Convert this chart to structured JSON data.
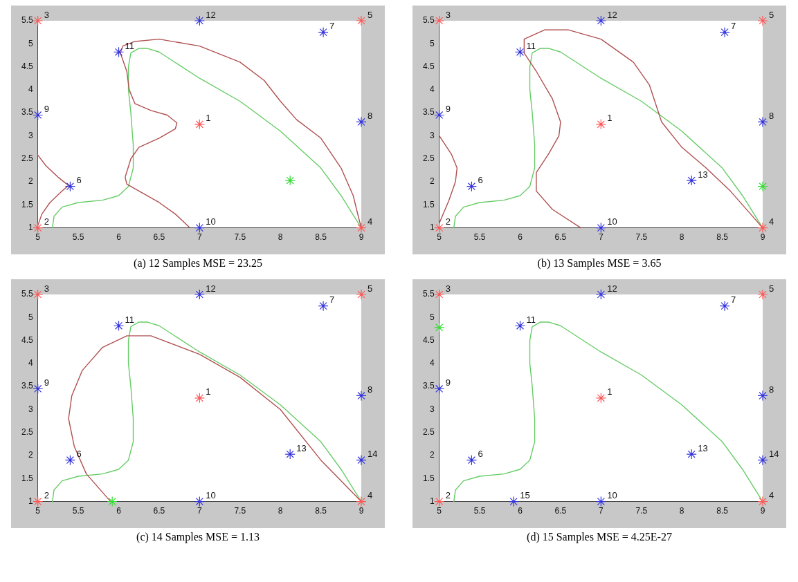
{
  "chart_data": [
    {
      "type": "scatter",
      "title": "(a) 12 Samples MSE = 23.25",
      "xlim": [
        5,
        9
      ],
      "ylim": [
        1,
        5.5
      ],
      "xticks": [
        5,
        5.5,
        6,
        6.5,
        7,
        7.5,
        8,
        8.5,
        9
      ],
      "yticks": [
        1,
        1.5,
        2,
        2.5,
        3,
        3.5,
        4,
        4.5,
        5,
        5.5
      ],
      "marker": "cross",
      "series": [
        {
          "color": "#ff5555",
          "x": [
            7,
            5,
            5,
            9,
            9
          ],
          "values": [
            3.25,
            1,
            5.5,
            1,
            5.5
          ]
        },
        {
          "color": "#3333dd",
          "x": [
            5.4,
            8.53,
            9,
            5,
            7,
            6,
            7
          ],
          "values": [
            1.9,
            5.25,
            3.3,
            3.45,
            1,
            4.82,
            5.5
          ]
        },
        {
          "color": "#33dd33",
          "x": [
            8.12
          ],
          "values": [
            2.03
          ]
        },
        {
          "type": "line",
          "marker": "none",
          "color": "#b05050",
          "x": [
            5,
            5.1,
            5.25,
            5.38,
            5.3,
            5.15,
            5.05,
            5,
            null,
            6.88,
            6.7,
            6.5,
            6.3,
            6.1,
            6.08,
            6.15,
            6.25,
            6.5,
            6.7,
            6.72,
            6.6,
            6.4,
            6.2,
            6.13,
            6.1,
            6.05,
            6.02,
            6.05,
            6.2,
            6.5,
            7,
            7.5,
            7.8,
            8,
            8.2,
            8.5,
            8.75,
            8.9,
            8.97,
            9
          ],
          "values": [
            2.58,
            2.35,
            2.1,
            1.92,
            1.8,
            1.55,
            1.3,
            1.05,
            null,
            1,
            1.3,
            1.55,
            1.75,
            1.95,
            2.1,
            2.5,
            2.75,
            2.95,
            3.15,
            3.28,
            3.45,
            3.55,
            3.7,
            4,
            4.4,
            4.65,
            4.8,
            4.95,
            5.05,
            5.1,
            4.95,
            4.6,
            4.2,
            3.75,
            3.35,
            2.95,
            2.3,
            1.7,
            1.2,
            1
          ]
        },
        {
          "type": "line",
          "marker": "none",
          "color": "#66cc66",
          "x": [
            5.18,
            5.2,
            5.3,
            5.5,
            5.8,
            6,
            6.12,
            6.18,
            6.18,
            6.15,
            6.12,
            6.12,
            6.15,
            6.25,
            6.35,
            6.5,
            7,
            7.5,
            8,
            8.5,
            8.75,
            9
          ],
          "values": [
            1,
            1.25,
            1.45,
            1.55,
            1.6,
            1.7,
            1.9,
            2.3,
            2.8,
            3.5,
            4,
            4.5,
            4.8,
            4.9,
            4.9,
            4.82,
            4.25,
            3.75,
            3.1,
            2.3,
            1.7,
            1
          ]
        }
      ],
      "annotations": [
        {
          "text": "1",
          "x": 7,
          "y": 3.25
        },
        {
          "text": "2",
          "x": 5,
          "y": 1
        },
        {
          "text": "3",
          "x": 5,
          "y": 5.5
        },
        {
          "text": "4",
          "x": 9,
          "y": 1
        },
        {
          "text": "5",
          "x": 9,
          "y": 5.5
        },
        {
          "text": "6",
          "x": 5.4,
          "y": 1.9
        },
        {
          "text": "7",
          "x": 8.53,
          "y": 5.25
        },
        {
          "text": "8",
          "x": 9,
          "y": 3.3
        },
        {
          "text": "9",
          "x": 5,
          "y": 3.45
        },
        {
          "text": "10",
          "x": 7,
          "y": 1
        },
        {
          "text": "11",
          "x": 6,
          "y": 4.82
        },
        {
          "text": "12",
          "x": 7,
          "y": 5.5
        }
      ]
    },
    {
      "type": "scatter",
      "title": "(b) 13 Samples MSE = 3.65",
      "xlim": [
        5,
        9
      ],
      "ylim": [
        1,
        5.5
      ],
      "xticks": [
        5,
        5.5,
        6,
        6.5,
        7,
        7.5,
        8,
        8.5,
        9
      ],
      "yticks": [
        1,
        1.5,
        2,
        2.5,
        3,
        3.5,
        4,
        4.5,
        5,
        5.5
      ],
      "marker": "cross",
      "series": [
        {
          "color": "#ff5555",
          "x": [
            7,
            5,
            5,
            9,
            9
          ],
          "values": [
            3.25,
            1,
            5.5,
            1,
            5.5
          ]
        },
        {
          "color": "#3333dd",
          "x": [
            5.4,
            8.53,
            9,
            5,
            7,
            6,
            7,
            8.12
          ],
          "values": [
            1.9,
            5.25,
            3.3,
            3.45,
            1,
            4.82,
            5.5,
            2.03
          ]
        },
        {
          "color": "#33dd33",
          "x": [
            9
          ],
          "values": [
            1.9
          ]
        },
        {
          "type": "line",
          "marker": "none",
          "color": "#b05050",
          "x": [
            5,
            5.15,
            5.22,
            5.2,
            5.12,
            5,
            null,
            6.75,
            6.4,
            6.2,
            6.2,
            6.35,
            6.48,
            6.5,
            6.4,
            6.2,
            6.05,
            6.05,
            6.3,
            6.6,
            7,
            7.4,
            7.6,
            7.75,
            8,
            8.3,
            8.6,
            9
          ],
          "values": [
            3,
            2.6,
            2.3,
            2,
            1.6,
            1.1,
            null,
            1,
            1.4,
            1.8,
            2.2,
            2.6,
            3,
            3.3,
            3.8,
            4.4,
            4.8,
            5.1,
            5.3,
            5.3,
            5.1,
            4.6,
            4.1,
            3.3,
            2.75,
            2.3,
            1.8,
            1
          ]
        },
        {
          "type": "line",
          "marker": "none",
          "color": "#66cc66",
          "x": [
            5.18,
            5.2,
            5.3,
            5.5,
            5.8,
            6,
            6.12,
            6.18,
            6.18,
            6.15,
            6.12,
            6.12,
            6.15,
            6.25,
            6.35,
            6.5,
            7,
            7.5,
            8,
            8.5,
            8.75,
            9
          ],
          "values": [
            1,
            1.25,
            1.45,
            1.55,
            1.6,
            1.7,
            1.9,
            2.3,
            2.8,
            3.5,
            4,
            4.5,
            4.8,
            4.9,
            4.9,
            4.82,
            4.25,
            3.75,
            3.1,
            2.3,
            1.7,
            1
          ]
        }
      ],
      "annotations": [
        {
          "text": "1",
          "x": 7,
          "y": 3.25
        },
        {
          "text": "2",
          "x": 5,
          "y": 1
        },
        {
          "text": "3",
          "x": 5,
          "y": 5.5
        },
        {
          "text": "4",
          "x": 9,
          "y": 1
        },
        {
          "text": "5",
          "x": 9,
          "y": 5.5
        },
        {
          "text": "6",
          "x": 5.4,
          "y": 1.9
        },
        {
          "text": "7",
          "x": 8.53,
          "y": 5.25
        },
        {
          "text": "8",
          "x": 9,
          "y": 3.3
        },
        {
          "text": "9",
          "x": 5,
          "y": 3.45
        },
        {
          "text": "10",
          "x": 7,
          "y": 1
        },
        {
          "text": "11",
          "x": 6,
          "y": 4.82
        },
        {
          "text": "12",
          "x": 7,
          "y": 5.5
        },
        {
          "text": "13",
          "x": 8.12,
          "y": 2.03
        }
      ]
    },
    {
      "type": "scatter",
      "title": "(c) 14 Samples MSE = 1.13",
      "xlim": [
        5,
        9
      ],
      "ylim": [
        1,
        5.5
      ],
      "xticks": [
        5,
        5.5,
        6,
        6.5,
        7,
        7.5,
        8,
        8.5,
        9
      ],
      "yticks": [
        1,
        1.5,
        2,
        2.5,
        3,
        3.5,
        4,
        4.5,
        5,
        5.5
      ],
      "marker": "cross",
      "series": [
        {
          "color": "#ff5555",
          "x": [
            7,
            5,
            5,
            9,
            9
          ],
          "values": [
            3.25,
            1,
            5.5,
            1,
            5.5
          ]
        },
        {
          "color": "#3333dd",
          "x": [
            5.4,
            8.53,
            9,
            5,
            7,
            6,
            7,
            8.12,
            9
          ],
          "values": [
            1.9,
            5.25,
            3.3,
            3.45,
            1,
            4.82,
            5.5,
            2.03,
            1.9
          ]
        },
        {
          "color": "#33dd33",
          "x": [
            5.92
          ],
          "values": [
            1
          ]
        },
        {
          "type": "line",
          "marker": "none",
          "color": "#b05050",
          "x": [
            5.9,
            5.6,
            5.45,
            5.38,
            5.42,
            5.55,
            5.8,
            6.1,
            6.4,
            7,
            7.5,
            8,
            8.5,
            9
          ],
          "values": [
            1,
            1.6,
            2.2,
            2.8,
            3.3,
            3.85,
            4.35,
            4.6,
            4.6,
            4.2,
            3.7,
            3,
            1.9,
            1
          ]
        },
        {
          "type": "line",
          "marker": "none",
          "color": "#66cc66",
          "x": [
            5.18,
            5.2,
            5.3,
            5.5,
            5.8,
            6,
            6.12,
            6.18,
            6.18,
            6.15,
            6.12,
            6.12,
            6.15,
            6.25,
            6.35,
            6.5,
            7,
            7.5,
            8,
            8.5,
            8.75,
            9
          ],
          "values": [
            1,
            1.25,
            1.45,
            1.55,
            1.6,
            1.7,
            1.9,
            2.3,
            2.8,
            3.5,
            4,
            4.5,
            4.8,
            4.9,
            4.9,
            4.82,
            4.25,
            3.75,
            3.1,
            2.3,
            1.7,
            1
          ]
        }
      ],
      "annotations": [
        {
          "text": "1",
          "x": 7,
          "y": 3.25
        },
        {
          "text": "2",
          "x": 5,
          "y": 1
        },
        {
          "text": "3",
          "x": 5,
          "y": 5.5
        },
        {
          "text": "4",
          "x": 9,
          "y": 1
        },
        {
          "text": "5",
          "x": 9,
          "y": 5.5
        },
        {
          "text": "6",
          "x": 5.4,
          "y": 1.9
        },
        {
          "text": "7",
          "x": 8.53,
          "y": 5.25
        },
        {
          "text": "8",
          "x": 9,
          "y": 3.3
        },
        {
          "text": "9",
          "x": 5,
          "y": 3.45
        },
        {
          "text": "10",
          "x": 7,
          "y": 1
        },
        {
          "text": "11",
          "x": 6,
          "y": 4.82
        },
        {
          "text": "12",
          "x": 7,
          "y": 5.5
        },
        {
          "text": "13",
          "x": 8.12,
          "y": 2.03
        },
        {
          "text": "14",
          "x": 9,
          "y": 1.9
        }
      ]
    },
    {
      "type": "scatter",
      "title": "(d) 15 Samples MSE = 4.25E-27",
      "xlim": [
        5,
        9
      ],
      "ylim": [
        1,
        5.5
      ],
      "xticks": [
        5,
        5.5,
        6,
        6.5,
        7,
        7.5,
        8,
        8.5,
        9
      ],
      "yticks": [
        1,
        1.5,
        2,
        2.5,
        3,
        3.5,
        4,
        4.5,
        5,
        5.5
      ],
      "marker": "cross",
      "series": [
        {
          "color": "#ff5555",
          "x": [
            7,
            5,
            5,
            9,
            9
          ],
          "values": [
            3.25,
            1,
            5.5,
            1,
            5.5
          ]
        },
        {
          "color": "#3333dd",
          "x": [
            5.4,
            8.53,
            9,
            5,
            7,
            6,
            7,
            8.12,
            9,
            5.92
          ],
          "values": [
            1.9,
            5.25,
            3.3,
            3.45,
            1,
            4.82,
            5.5,
            2.03,
            1.9,
            1
          ]
        },
        {
          "color": "#33dd33",
          "x": [
            5
          ],
          "values": [
            4.78
          ]
        },
        {
          "type": "line",
          "marker": "none",
          "color": "#66cc66",
          "x": [
            5.18,
            5.2,
            5.3,
            5.5,
            5.8,
            6,
            6.12,
            6.18,
            6.18,
            6.15,
            6.12,
            6.12,
            6.15,
            6.25,
            6.35,
            6.5,
            7,
            7.5,
            8,
            8.5,
            8.75,
            9
          ],
          "values": [
            1,
            1.25,
            1.45,
            1.55,
            1.6,
            1.7,
            1.9,
            2.3,
            2.8,
            3.5,
            4,
            4.5,
            4.8,
            4.9,
            4.9,
            4.82,
            4.25,
            3.75,
            3.1,
            2.3,
            1.7,
            1
          ]
        }
      ],
      "annotations": [
        {
          "text": "1",
          "x": 7,
          "y": 3.25
        },
        {
          "text": "2",
          "x": 5,
          "y": 1
        },
        {
          "text": "3",
          "x": 5,
          "y": 5.5
        },
        {
          "text": "4",
          "x": 9,
          "y": 1
        },
        {
          "text": "5",
          "x": 9,
          "y": 5.5
        },
        {
          "text": "6",
          "x": 5.4,
          "y": 1.9
        },
        {
          "text": "7",
          "x": 8.53,
          "y": 5.25
        },
        {
          "text": "8",
          "x": 9,
          "y": 3.3
        },
        {
          "text": "9",
          "x": 5,
          "y": 3.45
        },
        {
          "text": "10",
          "x": 7,
          "y": 1
        },
        {
          "text": "11",
          "x": 6,
          "y": 4.82
        },
        {
          "text": "12",
          "x": 7,
          "y": 5.5
        },
        {
          "text": "13",
          "x": 8.12,
          "y": 2.03
        },
        {
          "text": "14",
          "x": 9,
          "y": 1.9
        },
        {
          "text": "15",
          "x": 5.92,
          "y": 1
        }
      ]
    }
  ]
}
